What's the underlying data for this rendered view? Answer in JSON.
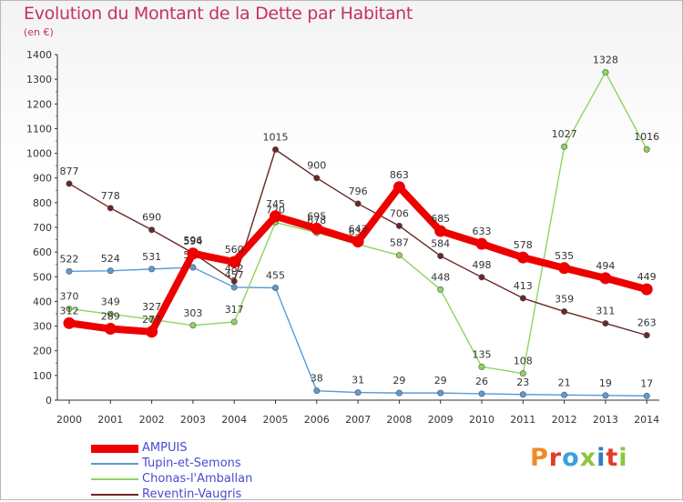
{
  "header": {
    "title": "Evolution du Montant de la Dette par Habitant",
    "unit": "(en €)"
  },
  "logo": {
    "text": "Proxiti",
    "colors": [
      "#f08a24",
      "#e23b2a",
      "#3aa0d8",
      "#8cc63f",
      "#2f7fc1",
      "#e23b2a",
      "#8cc63f"
    ]
  },
  "chart_data": {
    "type": "line",
    "title": "Evolution du Montant de la Dette par Habitant",
    "ylabel": "(en €)",
    "xlabel": "",
    "x": [
      "2000",
      "2001",
      "2002",
      "2003",
      "2004",
      "2005",
      "2006",
      "2007",
      "2008",
      "2009",
      "2010",
      "2011",
      "2012",
      "2013",
      "2014"
    ],
    "ylim": [
      0,
      1400
    ],
    "yticks": [
      0,
      100,
      200,
      300,
      400,
      500,
      600,
      700,
      800,
      900,
      1000,
      1100,
      1200,
      1300,
      1400
    ],
    "grid": false,
    "legend_position": "bottom-left",
    "series": [
      {
        "name": "AMPUIS",
        "color": "#ee0000",
        "weight": "thick",
        "values": [
          312,
          289,
          277,
          594,
          560,
          745,
          695,
          643,
          863,
          685,
          633,
          578,
          535,
          494,
          449
        ]
      },
      {
        "name": "Tupin-et-Semons",
        "color": "#5b9bd5",
        "weight": "thin",
        "values": [
          522,
          524,
          531,
          538,
          457,
          455,
          38,
          31,
          29,
          29,
          26,
          23,
          21,
          19,
          17
        ]
      },
      {
        "name": "Chonas-l'Amballan",
        "color": "#8fd45f",
        "weight": "thin",
        "values": [
          370,
          349,
          327,
          303,
          317,
          720,
          678,
          631,
          587,
          448,
          135,
          108,
          1027,
          1328,
          1016
        ]
      },
      {
        "name": "Reventin-Vaugris",
        "color": "#6b2626",
        "weight": "thin",
        "values": [
          877,
          778,
          690,
          596,
          482,
          1015,
          900,
          796,
          706,
          584,
          498,
          413,
          359,
          311,
          263
        ]
      }
    ]
  }
}
